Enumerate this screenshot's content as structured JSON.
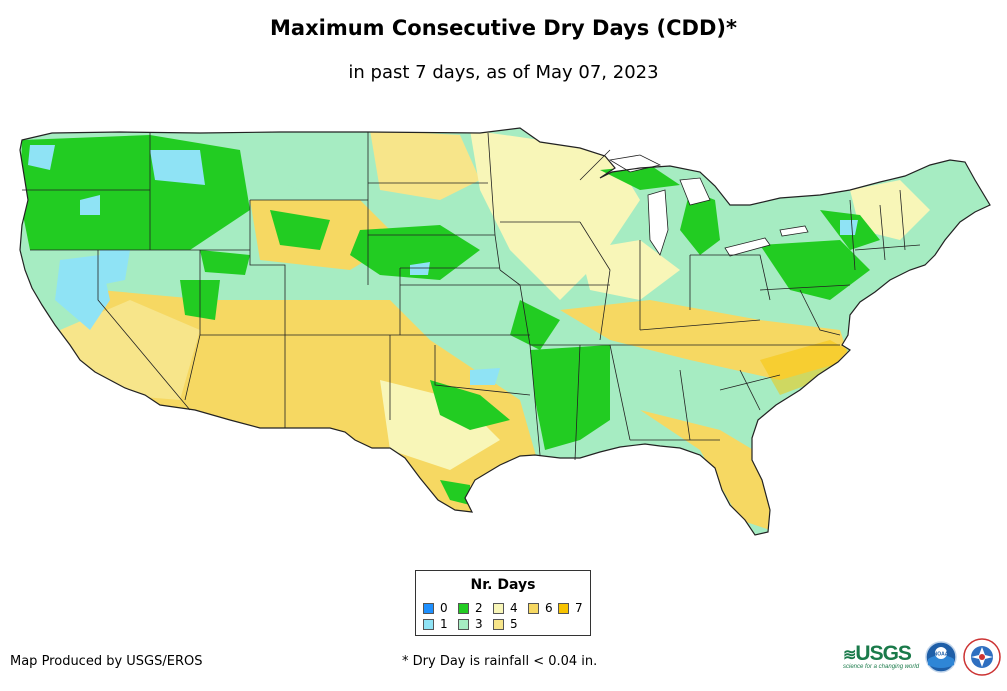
{
  "map": {
    "title": "Maximum Consecutive Dry Days (CDD)*",
    "subtitle": "in past 7 days, as of May 07, 2023",
    "region": "Contiguous United States"
  },
  "legend": {
    "title": "Nr. Days",
    "items": [
      {
        "label": "0",
        "color": "#1e90ff"
      },
      {
        "label": "1",
        "color": "#8fe3f5"
      },
      {
        "label": "2",
        "color": "#22cc22"
      },
      {
        "label": "3",
        "color": "#a6ecc2"
      },
      {
        "label": "4",
        "color": "#f8f6b8"
      },
      {
        "label": "5",
        "color": "#f7e58a"
      },
      {
        "label": "6",
        "color": "#f6d862"
      },
      {
        "label": "7",
        "color": "#f7c300"
      }
    ]
  },
  "footer": {
    "credit": "Map Produced by USGS/EROS",
    "footnote": "* Dry Day is rainfall < 0.04 in.",
    "usgs_logo": "USGS",
    "usgs_tagline": "science for a changing world",
    "noaa_logo": "NOAA",
    "nws_logo": "National Weather Service"
  }
}
